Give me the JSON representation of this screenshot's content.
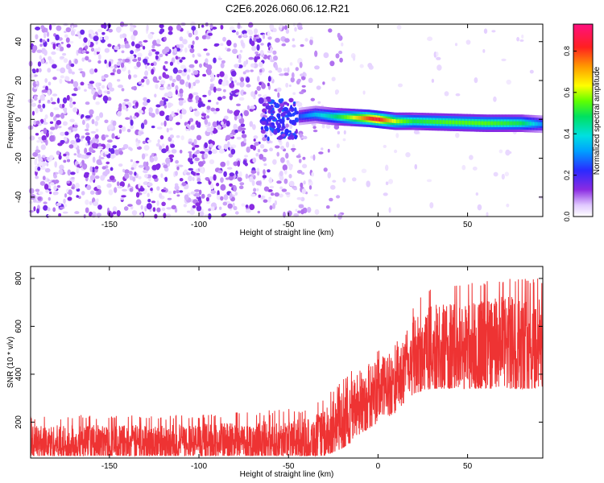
{
  "title": "C2E6.2026.060.06.12.R21",
  "chart_data": [
    {
      "type": "heatmap",
      "xlabel": "Height of straight line (km)",
      "ylabel": "Frequency (Hz)",
      "xlim": [
        -194,
        92
      ],
      "ylim": [
        -50,
        49
      ],
      "xticks": [
        -150,
        -100,
        -50,
        0,
        50
      ],
      "yticks": [
        -40,
        -20,
        0,
        20,
        40
      ],
      "colorbar": {
        "label": "Normalized spectral amplitude",
        "range": [
          0,
          0.93
        ],
        "ticks": [
          "0.0",
          "0.2",
          "0.4",
          "0.6",
          "0.8"
        ],
        "tick_values": [
          0,
          0.2,
          0.4,
          0.6,
          0.8
        ],
        "colormap": "rainbow (white-purple-blue-cyan-green-yellow-red-magenta)"
      },
      "ridge": {
        "description": "narrow high-amplitude band near 0 Hz",
        "x": [
          -44,
          -35,
          -25,
          -15,
          -5,
          0,
          10,
          20,
          40,
          60,
          80,
          92
        ],
        "freq": [
          1.5,
          2.5,
          1.5,
          1,
          0.5,
          0,
          -1,
          -1,
          -1.5,
          -2,
          -2,
          -2.5
        ],
        "amplitude": [
          0.25,
          0.35,
          0.45,
          0.6,
          0.8,
          0.85,
          0.6,
          0.5,
          0.55,
          0.55,
          0.5,
          0.3
        ]
      },
      "noise_region": {
        "x_start": -194,
        "x_end": -40,
        "typical_amplitude": 0.1
      }
    },
    {
      "type": "line",
      "xlabel": "Height of straight line (km)",
      "ylabel": "SNR (10 * v/v)",
      "xlim": [
        -194,
        92
      ],
      "ylim": [
        50,
        850
      ],
      "xticks": [
        -150,
        -100,
        -50,
        0,
        50
      ],
      "yticks": [
        200,
        400,
        600,
        800
      ],
      "series": [
        {
          "color": "#ee3333",
          "envelope_x": [
            -194,
            -100,
            -60,
            -40,
            -30,
            -20,
            -10,
            0,
            10,
            15,
            20,
            30,
            50,
            70,
            92
          ],
          "envelope_low": [
            60,
            60,
            60,
            60,
            60,
            90,
            140,
            200,
            240,
            280,
            320,
            340,
            340,
            340,
            340
          ],
          "envelope_high": [
            230,
            230,
            250,
            260,
            300,
            380,
            460,
            500,
            530,
            600,
            700,
            760,
            780,
            800,
            800
          ],
          "center": [
            110,
            115,
            120,
            125,
            140,
            200,
            280,
            330,
            370,
            420,
            470,
            500,
            510,
            520,
            520
          ]
        }
      ]
    }
  ]
}
